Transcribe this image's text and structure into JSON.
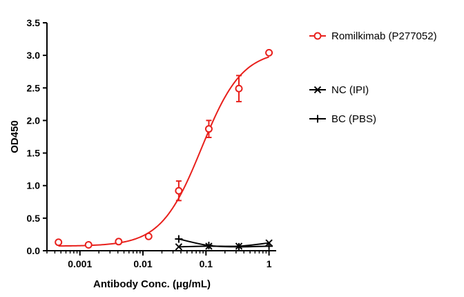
{
  "chart_data": {
    "type": "scatter",
    "xlabel": "Antibody Conc. (μg/mL)",
    "ylabel": "OD450",
    "x_scale": "log",
    "xlim": [
      0.0003,
      1.3
    ],
    "ylim": [
      0,
      3.5
    ],
    "x_ticks": [
      0.001,
      0.01,
      0.1,
      1
    ],
    "x_tick_labels": [
      "0.001",
      "0.01",
      "0.1",
      "1"
    ],
    "y_ticks": [
      0,
      0.5,
      1.0,
      1.5,
      2.0,
      2.5,
      3.0,
      3.5
    ],
    "y_tick_labels": [
      "0.0",
      "0.5",
      "1.0",
      "1.5",
      "2.0",
      "2.5",
      "3.0",
      "3.5"
    ],
    "legend_position": "right",
    "grid": false,
    "series": [
      {
        "name": "Romilkimab (P277052)",
        "color": "#e8201c",
        "marker": "open-circle",
        "fit": "sigmoidal",
        "fit_params": {
          "bottom": 0.07,
          "top": 3.08,
          "ec50": 0.085,
          "hill": 1.35
        },
        "x": [
          0.000457,
          0.00137,
          0.00412,
          0.0123,
          0.037,
          0.111,
          0.333,
          1.0
        ],
        "y": [
          0.13,
          0.09,
          0.14,
          0.22,
          0.92,
          1.87,
          2.49,
          3.04
        ],
        "err": [
          0,
          0,
          0,
          0,
          0.15,
          0.13,
          0.2,
          0
        ]
      },
      {
        "name": "NC (IPI)",
        "color": "#000000",
        "marker": "x",
        "fit": "smooth",
        "x": [
          0.037,
          0.111,
          0.333,
          1.0
        ],
        "y": [
          0.06,
          0.07,
          0.07,
          0.12
        ],
        "err": [
          0,
          0,
          0,
          0
        ]
      },
      {
        "name": "BC (PBS)",
        "color": "#000000",
        "marker": "plus",
        "fit": "smooth",
        "x": [
          0.037,
          0.111,
          0.333,
          1.0
        ],
        "y": [
          0.18,
          0.08,
          0.06,
          0.07
        ],
        "err": [
          0,
          0,
          0,
          0
        ]
      }
    ]
  }
}
